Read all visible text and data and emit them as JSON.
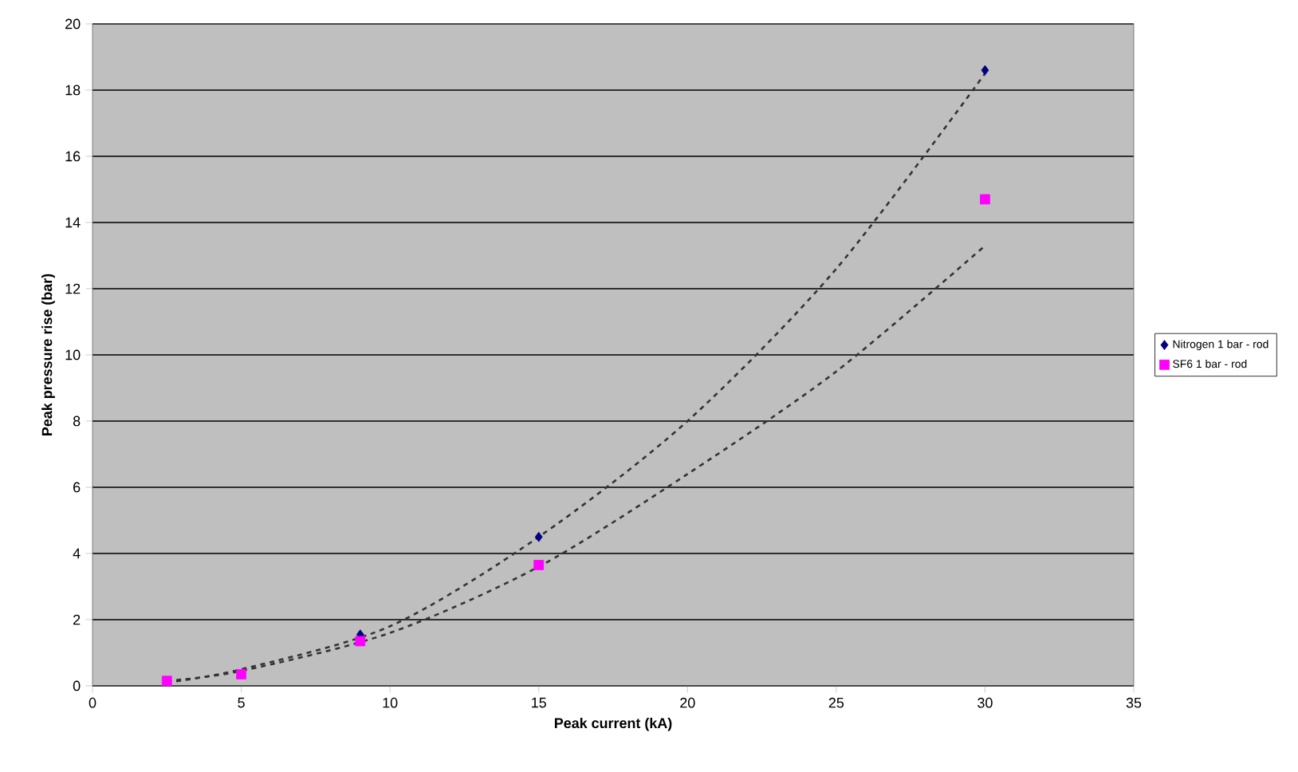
{
  "chart_data": {
    "type": "scatter",
    "xlabel": "Peak current (kA)",
    "ylabel": "Peak pressure rise (bar)",
    "series": [
      {
        "name": "Nitrogen 1 bar - rod",
        "color": "#000080",
        "marker": "diamond",
        "x": [
          9,
          15,
          30
        ],
        "values": [
          1.55,
          4.5,
          18.6
        ]
      },
      {
        "name": "SF6 1 bar - rod",
        "color": "#ff00ff",
        "marker": "square",
        "x": [
          2.5,
          5,
          9,
          15,
          30
        ],
        "values": [
          0.15,
          0.35,
          1.35,
          3.65,
          14.7
        ]
      },
      {
        "type": "line",
        "color": "#333333",
        "line_style": "dashed",
        "x": [
          2.5,
          5,
          10,
          15,
          20,
          25,
          30
        ],
        "values": [
          0.1,
          0.5,
          1.8,
          4.5,
          8.0,
          12.6,
          18.5
        ]
      },
      {
        "type": "line",
        "color": "#333333",
        "line_style": "dashed",
        "x": [
          2.5,
          5,
          10,
          15,
          20,
          25,
          30
        ],
        "values": [
          0.15,
          0.45,
          1.6,
          3.6,
          6.4,
          9.5,
          13.3
        ]
      }
    ],
    "xlim": [
      0,
      35
    ],
    "xticks": [
      0,
      5,
      10,
      15,
      20,
      25,
      30,
      35
    ],
    "ylim": [
      0,
      20
    ],
    "yticks": [
      0,
      2,
      4,
      6,
      8,
      10,
      12,
      14,
      16,
      18,
      20
    ],
    "grid": "y",
    "legend": "right"
  }
}
